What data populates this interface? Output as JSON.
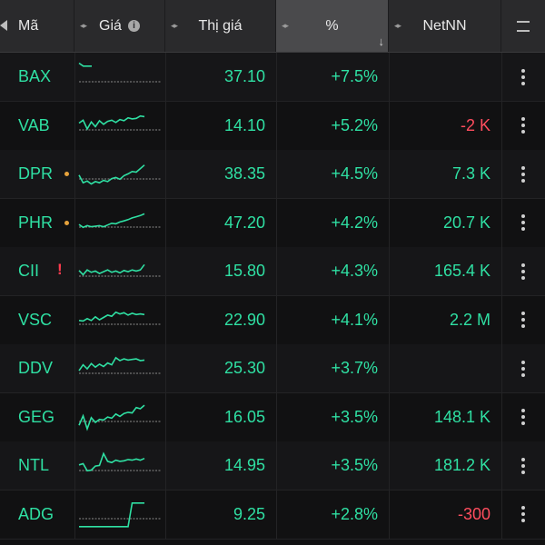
{
  "header": {
    "col_symbol": "Mã",
    "col_spark": "Giá",
    "col_price": "Thị giá",
    "col_pct": "%",
    "col_netnn": "NetNN"
  },
  "colors": {
    "up": "#2fe0a3",
    "down": "#ff4d5e",
    "warning": "#e6a23c",
    "alert": "#ff3b4e"
  },
  "rows": [
    {
      "symbol": "BAX",
      "price": "37.10",
      "pct": "+7.5%",
      "netnn": "",
      "netnn_dir": "pos",
      "marker": "",
      "spark": [
        5,
        4.5,
        4.5,
        4.5
      ]
    },
    {
      "symbol": "VAB",
      "price": "14.10",
      "pct": "+5.2%",
      "netnn": "-2 K",
      "netnn_dir": "neg",
      "marker": "",
      "spark": [
        3,
        3.5,
        2,
        3.2,
        2.4,
        3.4,
        2.8,
        3.3,
        3.5,
        3.1,
        3.6,
        3.4,
        3.9,
        3.7,
        3.8,
        4.2,
        4.1
      ]
    },
    {
      "symbol": "DPR",
      "price": "38.35",
      "pct": "+4.5%",
      "netnn": "7.3 K",
      "netnn_dir": "pos",
      "marker": "dot",
      "spark": [
        2.5,
        1.2,
        1.5,
        1,
        1.4,
        1.2,
        1.6,
        1.4,
        1.9,
        2.1,
        1.8,
        2.4,
        2.7,
        3.1,
        3,
        3.6,
        4.2
      ]
    },
    {
      "symbol": "PHR",
      "price": "47.20",
      "pct": "+4.2%",
      "netnn": "20.7 K",
      "netnn_dir": "pos",
      "marker": "dot",
      "spark": [
        2.3,
        1.8,
        2.1,
        1.9,
        2,
        2.1,
        1.9,
        2.2,
        2.5,
        2.4,
        2.7,
        2.9,
        3.1,
        3.4,
        3.6,
        3.8,
        4.1
      ]
    },
    {
      "symbol": "CII",
      "price": "15.80",
      "pct": "+4.3%",
      "netnn": "165.4 K",
      "netnn_dir": "pos",
      "marker": "excl",
      "spark": [
        2.8,
        2.1,
        2.9,
        2.5,
        2.7,
        2.3,
        2.6,
        2.9,
        2.5,
        2.7,
        2.4,
        2.8,
        2.6,
        2.9,
        2.7,
        2.9,
        3.8
      ]
    },
    {
      "symbol": "VSC",
      "price": "22.90",
      "pct": "+4.1%",
      "netnn": "2.2 M",
      "netnn_dir": "pos",
      "marker": "",
      "spark": [
        2.5,
        2.4,
        2.8,
        2.5,
        3.1,
        2.6,
        3,
        3.4,
        3.2,
        3.9,
        3.6,
        3.8,
        3.4,
        3.7,
        3.5,
        3.6,
        3.5
      ]
    },
    {
      "symbol": "DDV",
      "price": "25.30",
      "pct": "+3.7%",
      "netnn": "",
      "netnn_dir": "pos",
      "marker": "",
      "spark": [
        2.3,
        3.3,
        2.6,
        3.5,
        2.9,
        3.4,
        3,
        3.6,
        3.3,
        4.5,
        4,
        4.3,
        4.1,
        4.2,
        4.3,
        4,
        4.1
      ]
    },
    {
      "symbol": "GEG",
      "price": "16.05",
      "pct": "+3.5%",
      "netnn": "148.1 K",
      "netnn_dir": "pos",
      "marker": "",
      "spark": [
        1.2,
        2.8,
        0.6,
        2.5,
        1.7,
        2.2,
        2.1,
        2.6,
        2.4,
        3.1,
        2.7,
        3.2,
        3.4,
        3.3,
        4.2,
        4,
        4.6
      ]
    },
    {
      "symbol": "NTL",
      "price": "14.95",
      "pct": "+3.5%",
      "netnn": "181.2 K",
      "netnn_dir": "pos",
      "marker": "",
      "spark": [
        2.8,
        3,
        1.8,
        1.9,
        2.6,
        2.7,
        4.7,
        3.4,
        3.2,
        3.6,
        3.4,
        3.5,
        3.7,
        3.6,
        3.8,
        3.6,
        3.9
      ]
    },
    {
      "symbol": "ADG",
      "price": "9.25",
      "pct": "+2.8%",
      "netnn": "-300",
      "netnn_dir": "neg",
      "marker": "",
      "spark": [
        0.5,
        0.5,
        0.5,
        0.5,
        0.5,
        0.5,
        0.5,
        0.5,
        0.5,
        0.5,
        0.5,
        0.5,
        0.5,
        4.5,
        4.5,
        4.5,
        4.5
      ]
    }
  ]
}
